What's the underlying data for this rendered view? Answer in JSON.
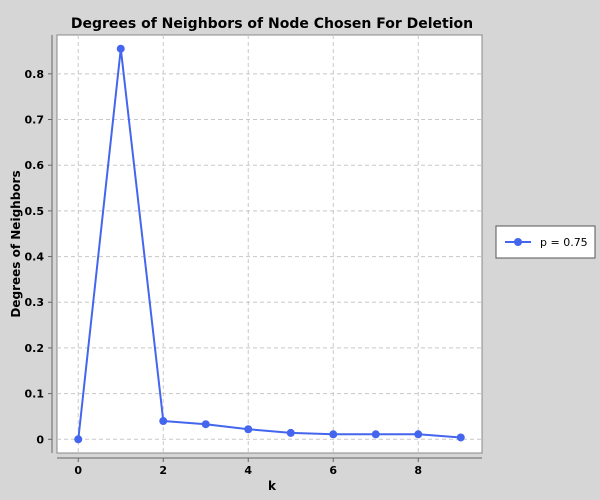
{
  "chart_data": {
    "type": "line",
    "title": "Degrees of Neighbors of Node Chosen For Deletion",
    "xlabel": "k",
    "ylabel": "Degrees of Neighbors",
    "xlim": [
      -0.5,
      9.5
    ],
    "ylim": [
      -0.03,
      0.885
    ],
    "xticks": [
      0,
      2,
      4,
      6,
      8
    ],
    "yticks": [
      0,
      0.1,
      0.2,
      0.3,
      0.4,
      0.5,
      0.6,
      0.7,
      0.8
    ],
    "grid": true,
    "legend_position": "right",
    "series": [
      {
        "name": "p = 0.75",
        "color": "#4466ee",
        "x": [
          0,
          1,
          2,
          3,
          4,
          5,
          6,
          7,
          8,
          9
        ],
        "y": [
          0.0,
          0.855,
          0.04,
          0.033,
          0.022,
          0.014,
          0.011,
          0.011,
          0.011,
          0.004
        ]
      }
    ]
  }
}
